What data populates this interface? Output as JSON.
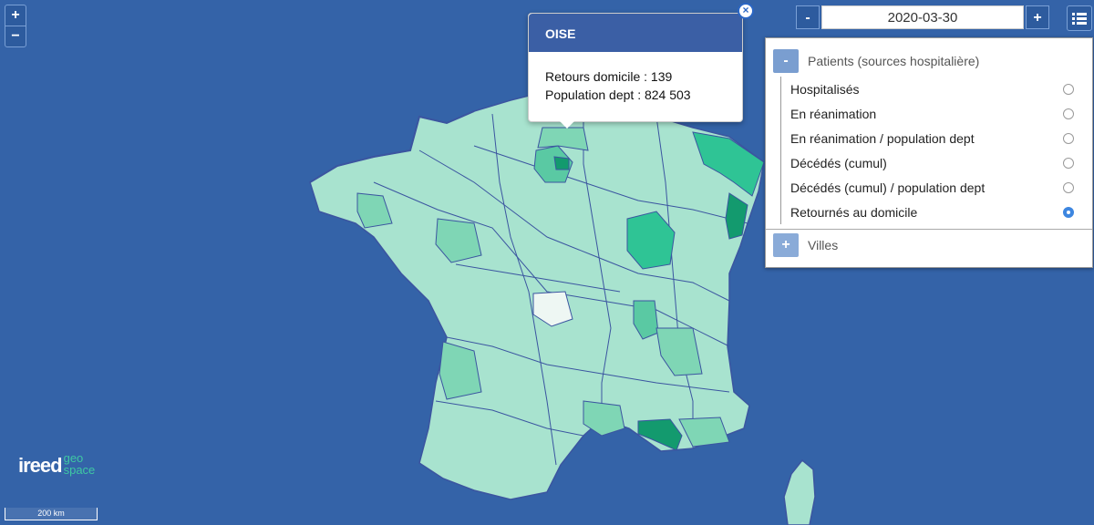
{
  "map": {
    "zoom_in": "+",
    "zoom_out": "−",
    "scale_label": "200 km",
    "colors": {
      "sea": "#3463a8",
      "land": "#a8e3cf",
      "mid": "#7fd6b5",
      "high": "#2fc495",
      "max": "#139a6e",
      "min": "#eef7f3",
      "border": "#3b55a0"
    }
  },
  "popup": {
    "title": "OISE",
    "line1": "Retours domicile : 139",
    "line2": "Population dept : 824 503",
    "close": "×"
  },
  "datebar": {
    "minus": "-",
    "value": "2020-03-30",
    "plus": "+"
  },
  "layers": {
    "groups": [
      {
        "toggle": "-",
        "label": "Patients (sources hospitalière)"
      },
      {
        "toggle": "+",
        "label": "Villes"
      }
    ],
    "items": [
      {
        "label": "Hospitalisés",
        "selected": false
      },
      {
        "label": "En réanimation",
        "selected": false
      },
      {
        "label": "En réanimation / population dept",
        "selected": false
      },
      {
        "label": "Décédés (cumul)",
        "selected": false
      },
      {
        "label": "Décédés (cumul) / population dept",
        "selected": false
      },
      {
        "label": "Retournés au domicile",
        "selected": true
      }
    ]
  },
  "logo": {
    "main": "ireed",
    "sub1": "geo",
    "sub2": "space"
  }
}
